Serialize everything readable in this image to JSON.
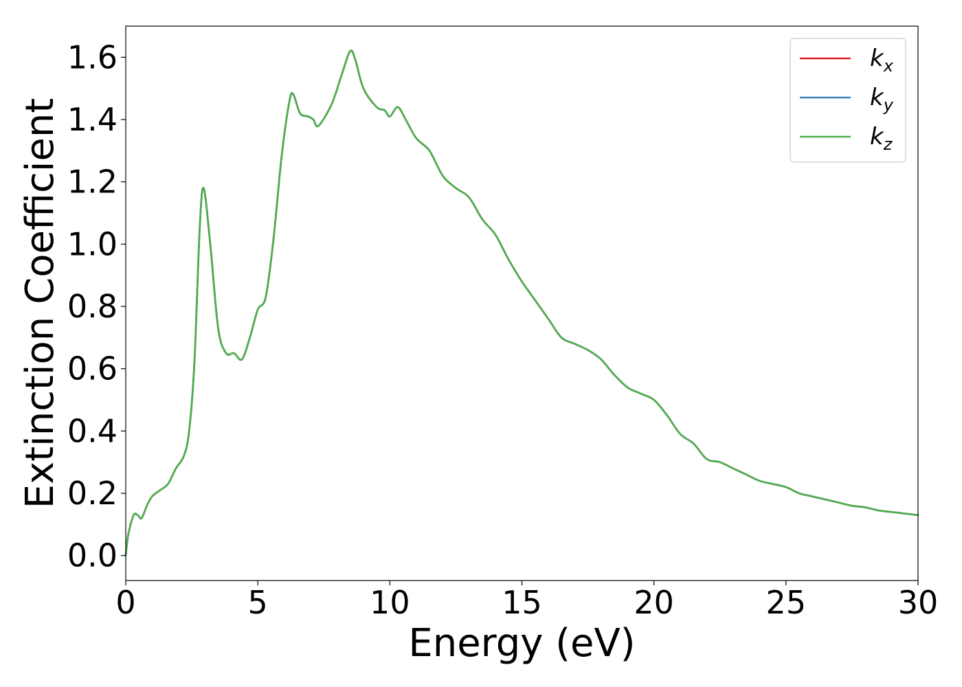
{
  "chart_data": {
    "type": "line",
    "title": "",
    "xlabel": "Energy (eV)",
    "ylabel": "Extinction Coefficient",
    "xlim": [
      0,
      30
    ],
    "ylim": [
      -0.08,
      1.7
    ],
    "xticks": [
      0,
      5,
      10,
      15,
      20,
      25,
      30
    ],
    "yticks": [
      0.0,
      0.2,
      0.4,
      0.6,
      0.8,
      1.0,
      1.2,
      1.4,
      1.6
    ],
    "ytick_format": 1,
    "grid": false,
    "legend_position": "top-right",
    "colors": {
      "kx": "#e41a1c",
      "ky": "#377eb8",
      "kz": "#4daf4a"
    },
    "series": [
      {
        "key": "kx",
        "name": "k",
        "subscript": "x",
        "color": "#e41a1c"
      },
      {
        "key": "ky",
        "name": "k",
        "subscript": "y",
        "color": "#377eb8"
      },
      {
        "key": "kz",
        "name": "k",
        "subscript": "z",
        "color": "#4daf4a"
      }
    ],
    "x": [
      0,
      0.1,
      0.3,
      0.45,
      0.6,
      0.8,
      1.0,
      1.3,
      1.6,
      1.9,
      2.2,
      2.4,
      2.6,
      2.8,
      2.95,
      3.2,
      3.5,
      3.8,
      4.1,
      4.4,
      4.7,
      5.0,
      5.3,
      5.6,
      5.9,
      6.2,
      6.35,
      6.6,
      6.9,
      7.1,
      7.3,
      7.8,
      8.2,
      8.5,
      8.7,
      9.0,
      9.5,
      9.8,
      10.0,
      10.3,
      10.6,
      11.0,
      11.5,
      12.0,
      12.5,
      13.0,
      13.5,
      14.0,
      14.5,
      15.0,
      15.5,
      16.0,
      16.5,
      17.0,
      17.5,
      18.0,
      18.5,
      19.0,
      19.5,
      20.0,
      20.5,
      21.0,
      21.5,
      22.0,
      22.5,
      23.0,
      23.5,
      24.0,
      24.5,
      25.0,
      25.5,
      26.0,
      26.5,
      27.0,
      27.5,
      28.0,
      28.5,
      29.0,
      29.5,
      30.0
    ],
    "y": [
      0.0,
      0.07,
      0.13,
      0.13,
      0.12,
      0.16,
      0.19,
      0.21,
      0.23,
      0.28,
      0.32,
      0.4,
      0.62,
      1.05,
      1.18,
      1.0,
      0.73,
      0.65,
      0.65,
      0.63,
      0.7,
      0.79,
      0.83,
      1.02,
      1.28,
      1.46,
      1.48,
      1.42,
      1.41,
      1.4,
      1.38,
      1.45,
      1.55,
      1.62,
      1.59,
      1.5,
      1.44,
      1.43,
      1.41,
      1.44,
      1.4,
      1.34,
      1.3,
      1.22,
      1.18,
      1.15,
      1.08,
      1.03,
      0.95,
      0.88,
      0.82,
      0.76,
      0.7,
      0.68,
      0.66,
      0.63,
      0.58,
      0.54,
      0.52,
      0.5,
      0.45,
      0.39,
      0.36,
      0.31,
      0.3,
      0.28,
      0.26,
      0.24,
      0.23,
      0.22,
      0.2,
      0.19,
      0.18,
      0.17,
      0.16,
      0.155,
      0.145,
      0.14,
      0.135,
      0.13
    ]
  }
}
